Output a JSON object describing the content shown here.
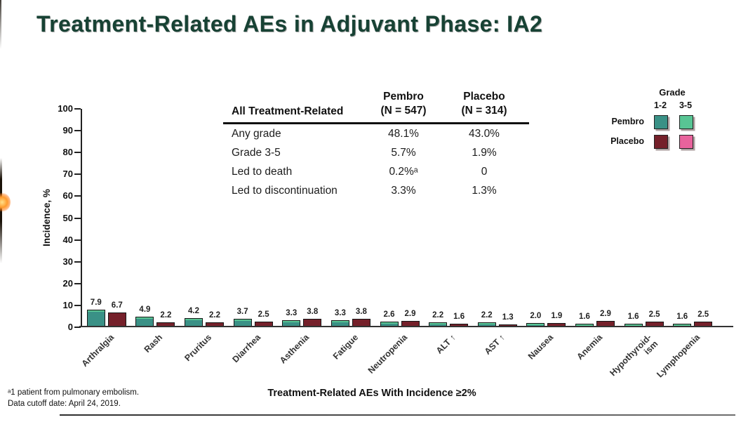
{
  "slide": {
    "title": "Treatment-Related AEs in Adjuvant Phase: IA2",
    "footnotes": [
      "ᵃ1 patient from pulmonary embolism.",
      "Data cutoff date: April 24, 2019."
    ]
  },
  "summary_table": {
    "col1_header": "All Treatment-Related",
    "col2_header": "Pembro\n(N = 547)",
    "col3_header": "Placebo\n(N = 314)",
    "rows": [
      {
        "label": "Any grade",
        "pembro": "48.1%",
        "placebo": "43.0%"
      },
      {
        "label": "Grade 3-5",
        "pembro": "5.7%",
        "placebo": "1.9%"
      },
      {
        "label": "Led to death",
        "pembro": "0.2%ᵃ",
        "placebo": "0"
      },
      {
        "label": "Led to discontinuation",
        "pembro": "3.3%",
        "placebo": "1.3%"
      }
    ]
  },
  "legend": {
    "title": "Grade",
    "columns": [
      "1-2",
      "3-5"
    ],
    "rows": [
      {
        "label": "Pembro",
        "grade12_color": "#3A9186",
        "grade35_color": "#58C594"
      },
      {
        "label": "Placebo",
        "grade12_color": "#75202A",
        "grade35_color": "#E8639C"
      }
    ]
  },
  "chart_data": {
    "type": "bar",
    "title": "",
    "xlabel": "Treatment-Related AEs With Incidence ≥2%",
    "ylabel": "Incidence, %",
    "ylim": [
      0,
      100
    ],
    "yticks": [
      0,
      10,
      20,
      30,
      40,
      50,
      60,
      70,
      80,
      90,
      100
    ],
    "grid": false,
    "legend_position": "top-right",
    "categories": [
      "Arthralgia",
      "Rash",
      "Pruritus",
      "Diarrhea",
      "Asthenia",
      "Fatigue",
      "Neutropenia",
      "ALT ↑",
      "AST ↑",
      "Nausea",
      "Anemia",
      "Hypothyroid-\nism",
      "Lymphopenia"
    ],
    "series": [
      {
        "name": "Pembro",
        "color": "#3A9186",
        "grade35_color": "#58C594",
        "values": [
          7.9,
          4.9,
          4.2,
          3.7,
          3.3,
          3.3,
          2.6,
          2.2,
          2.2,
          2.0,
          1.6,
          1.6,
          1.6
        ],
        "color_overrides": {
          "12": "#58C594"
        }
      },
      {
        "name": "Placebo",
        "color": "#75202A",
        "grade35_color": "#E8639C",
        "values": [
          6.7,
          2.2,
          2.2,
          2.5,
          3.8,
          3.8,
          2.9,
          1.6,
          1.3,
          1.9,
          2.9,
          2.5,
          2.5
        ],
        "color_overrides": {}
      }
    ]
  }
}
